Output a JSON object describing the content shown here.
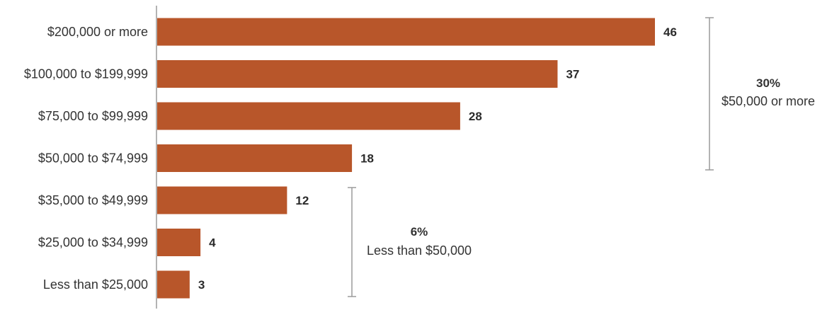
{
  "chart_data": {
    "type": "bar",
    "orientation": "horizontal",
    "categories": [
      "$200,000 or more",
      "$100,000 to $199,999",
      "$75,000 to $99,999",
      "$50,000 to $74,999",
      "$35,000 to $49,999",
      "$25,000 to $34,999",
      "Less than $25,000"
    ],
    "values": [
      46,
      37,
      28,
      18,
      12,
      4,
      3
    ],
    "xlim": [
      0,
      50
    ],
    "bar_color": "#b8562a",
    "grid": false,
    "title": "",
    "xlabel": "",
    "ylabel": "",
    "annotations": [
      {
        "group": "upper",
        "categories_spanned": [
          "$200,000 or more",
          "$100,000 to $199,999",
          "$75,000 to $99,999",
          "$50,000 to $74,999"
        ],
        "percent": "30%",
        "description": "$50,000 or more"
      },
      {
        "group": "lower",
        "categories_spanned": [
          "$35,000 to $49,999",
          "$25,000 to $34,999",
          "Less than $25,000"
        ],
        "percent": "6%",
        "description": "Less than $50,000"
      }
    ]
  }
}
